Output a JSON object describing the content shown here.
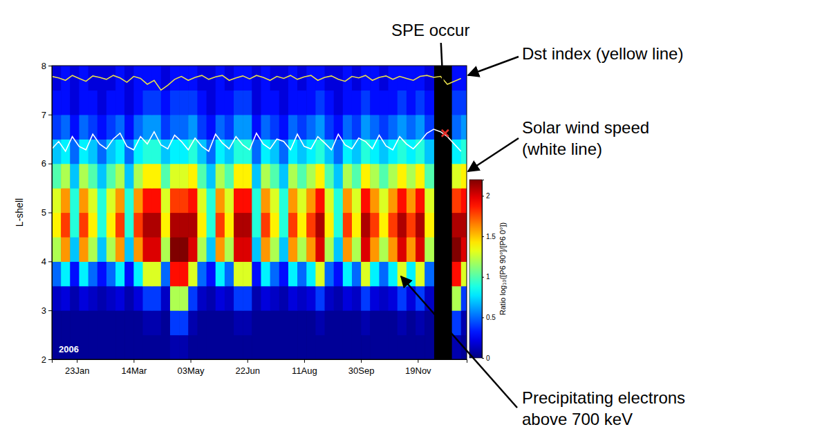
{
  "chart_data": {
    "type": "heatmap",
    "y_label": "L-shell",
    "xlim": [
      1,
      366
    ],
    "xticks": [
      {
        "value": 23,
        "label": "23Jan"
      },
      {
        "value": 73,
        "label": "14Mar"
      },
      {
        "value": 123,
        "label": "03May"
      },
      {
        "value": 173,
        "label": "22Jun"
      },
      {
        "value": 223,
        "label": "11Aug"
      },
      {
        "value": 273,
        "label": "30Sep"
      },
      {
        "value": 323,
        "label": "19Nov"
      }
    ],
    "ylim": [
      2,
      8
    ],
    "yticks": [
      2,
      3,
      4,
      5,
      6,
      7,
      8
    ],
    "heatmap": {
      "x_edges": [
        1,
        9,
        17,
        25,
        33,
        41,
        49,
        57,
        65,
        73,
        81,
        89,
        97,
        105,
        113,
        121,
        129,
        137,
        145,
        153,
        161,
        169,
        177,
        185,
        193,
        201,
        209,
        217,
        225,
        233,
        241,
        249,
        257,
        265,
        273,
        281,
        289,
        297,
        305,
        313,
        321,
        329,
        337,
        345,
        353,
        361,
        369
      ],
      "y_edges": [
        2,
        2.5,
        3,
        3.5,
        4,
        4.5,
        5,
        5.5,
        6,
        6.5,
        7,
        7.5,
        8
      ],
      "cells": [
        [
          0.05,
          0.05,
          0.05,
          0.05,
          0.05,
          0.05,
          0.05,
          0.05,
          0.05,
          0.05,
          0.05,
          0.05,
          0.05,
          0.1,
          0.1,
          0.05,
          0.05,
          0.05,
          0.05,
          0.05,
          0.05,
          0.05,
          0.05,
          0.05,
          0.05,
          0.05,
          0.05,
          0.05,
          0.05,
          0.05,
          0.05,
          0.05,
          0.05,
          0.05,
          0.05,
          0.05,
          0.05,
          0.05,
          0.05,
          0.05,
          0.05,
          0.05,
          null,
          null,
          0.1,
          0.05
        ],
        [
          0.05,
          0.05,
          0.05,
          0.05,
          0.05,
          0.05,
          0.05,
          0.05,
          0.05,
          0.05,
          0.1,
          0.1,
          0.05,
          0.4,
          0.4,
          0.1,
          0.05,
          0.05,
          0.05,
          0.05,
          0.1,
          0.1,
          0.05,
          0.05,
          0.05,
          0.05,
          0.05,
          0.05,
          0.05,
          0.1,
          0.05,
          0.05,
          0.05,
          0.05,
          0.1,
          0.05,
          0.05,
          0.05,
          0.1,
          0.05,
          0.1,
          0.05,
          null,
          null,
          0.4,
          0.1
        ],
        [
          0.15,
          0.2,
          0.1,
          0.2,
          0.15,
          0.1,
          0.15,
          0.2,
          0.1,
          0.2,
          0.4,
          0.4,
          0.15,
          1.2,
          1.2,
          0.4,
          0.15,
          0.1,
          0.2,
          0.15,
          0.4,
          0.4,
          0.1,
          0.2,
          0.15,
          0.1,
          0.2,
          0.15,
          0.2,
          0.4,
          0.15,
          0.1,
          0.2,
          0.15,
          0.4,
          0.2,
          0.15,
          0.2,
          0.4,
          0.2,
          0.4,
          0.15,
          null,
          null,
          1.2,
          0.4
        ],
        [
          0.5,
          0.8,
          0.3,
          0.8,
          0.5,
          0.3,
          0.5,
          0.8,
          0.3,
          0.8,
          1.3,
          1.3,
          0.5,
          1.9,
          1.9,
          1.3,
          0.5,
          0.3,
          0.8,
          0.5,
          1.3,
          1.3,
          0.3,
          0.8,
          0.5,
          0.3,
          0.8,
          0.5,
          0.8,
          1.3,
          0.5,
          0.3,
          0.8,
          0.5,
          1.3,
          0.8,
          0.5,
          0.8,
          1.3,
          0.8,
          1.3,
          0.5,
          null,
          null,
          1.9,
          1.3
        ],
        [
          1.2,
          1.6,
          0.7,
          1.6,
          1.2,
          0.7,
          1.2,
          1.6,
          0.7,
          1.6,
          2,
          2,
          1.2,
          2.2,
          2.2,
          2,
          1.2,
          0.7,
          1.6,
          1.2,
          2,
          2,
          0.7,
          1.6,
          1.2,
          0.7,
          1.6,
          1.2,
          1.6,
          2,
          1.2,
          0.7,
          1.6,
          1.2,
          2,
          1.6,
          1.2,
          1.6,
          2,
          1.6,
          2,
          1.2,
          null,
          null,
          2.2,
          2
        ],
        [
          1.4,
          1.8,
          0.9,
          1.8,
          1.4,
          0.9,
          1.4,
          1.8,
          0.9,
          1.8,
          2.1,
          2.1,
          1.4,
          2.1,
          2.1,
          2.1,
          1.4,
          0.9,
          1.8,
          1.4,
          2.1,
          2.1,
          0.9,
          1.8,
          1.4,
          0.9,
          1.8,
          1.4,
          1.8,
          2.1,
          1.4,
          0.9,
          1.8,
          1.4,
          2.1,
          1.8,
          1.4,
          1.8,
          2.1,
          1.8,
          2.1,
          1.4,
          null,
          null,
          2.1,
          2.1
        ],
        [
          1.3,
          1.6,
          0.9,
          1.6,
          1.3,
          0.9,
          1.3,
          1.6,
          0.9,
          1.6,
          1.9,
          1.9,
          1.3,
          1.8,
          1.8,
          1.9,
          1.3,
          0.9,
          1.6,
          1.3,
          1.9,
          1.9,
          0.9,
          1.6,
          1.3,
          0.9,
          1.6,
          1.3,
          1.6,
          1.9,
          1.3,
          0.9,
          1.6,
          1.3,
          1.9,
          1.6,
          1.3,
          1.6,
          1.9,
          1.6,
          1.9,
          1.3,
          null,
          null,
          1.8,
          1.9
        ],
        [
          1,
          1.2,
          0.7,
          1.2,
          1,
          0.7,
          1,
          1.2,
          0.7,
          1.2,
          1.4,
          1.4,
          1,
          1.3,
          1.3,
          1.4,
          1,
          0.7,
          1.2,
          1,
          1.4,
          1.4,
          0.7,
          1.2,
          1,
          0.7,
          1.2,
          1,
          1.2,
          1.4,
          1,
          0.7,
          1.2,
          1,
          1.4,
          1.2,
          1,
          1.2,
          1.4,
          1.2,
          1.4,
          1,
          null,
          null,
          1.3,
          1.4
        ],
        [
          0.7,
          0.8,
          0.5,
          0.8,
          0.7,
          0.5,
          0.7,
          0.8,
          0.5,
          0.8,
          0.9,
          0.9,
          0.7,
          0.8,
          0.8,
          0.9,
          0.7,
          0.5,
          0.8,
          0.7,
          0.9,
          0.9,
          0.5,
          0.8,
          0.7,
          0.5,
          0.8,
          0.7,
          0.8,
          0.9,
          0.7,
          0.5,
          0.8,
          0.7,
          0.9,
          0.8,
          0.7,
          0.8,
          0.9,
          0.8,
          0.9,
          0.7,
          null,
          null,
          0.8,
          0.9
        ],
        [
          0.4,
          0.5,
          0.3,
          0.5,
          0.4,
          0.3,
          0.4,
          0.5,
          0.3,
          0.5,
          0.6,
          0.6,
          0.4,
          0.5,
          0.5,
          0.6,
          0.4,
          0.3,
          0.5,
          0.4,
          0.6,
          0.6,
          0.3,
          0.5,
          0.4,
          0.3,
          0.5,
          0.4,
          0.5,
          0.6,
          0.4,
          0.3,
          0.5,
          0.4,
          0.6,
          0.5,
          0.4,
          0.5,
          0.6,
          0.5,
          0.6,
          0.4,
          null,
          null,
          0.5,
          0.6
        ],
        [
          0.3,
          0.3,
          0.2,
          0.3,
          0.3,
          0.2,
          0.3,
          0.3,
          0.2,
          0.3,
          0.4,
          0.4,
          0.3,
          0.4,
          0.4,
          0.4,
          0.3,
          0.2,
          0.3,
          0.3,
          0.4,
          0.4,
          0.2,
          0.3,
          0.3,
          0.2,
          0.3,
          0.3,
          0.3,
          0.4,
          0.3,
          0.2,
          0.3,
          0.3,
          0.4,
          0.3,
          0.3,
          0.3,
          0.4,
          0.3,
          0.4,
          0.3,
          null,
          null,
          0.4,
          0.4
        ],
        [
          0.2,
          0.3,
          0.2,
          0.3,
          0.2,
          0.2,
          0.2,
          0.3,
          0.2,
          0.3,
          0.3,
          0.3,
          0.2,
          0.3,
          0.3,
          0.3,
          0.2,
          0.2,
          0.3,
          0.2,
          0.3,
          0.3,
          0.2,
          0.3,
          0.2,
          0.2,
          0.3,
          0.2,
          0.3,
          0.3,
          0.2,
          0.2,
          0.3,
          0.2,
          0.3,
          0.3,
          0.2,
          0.3,
          0.3,
          0.3,
          0.3,
          0.2,
          null,
          null,
          0.3,
          0.3
        ]
      ]
    },
    "colorbar": {
      "label": "Ratio log₁₀([P6 90°]/[P6 0°])",
      "lim": [
        0,
        2.2
      ],
      "ticks": [
        0,
        0.5,
        1,
        1.5,
        2
      ]
    },
    "x": [
      1,
      7,
      13,
      19,
      25,
      31,
      37,
      43,
      49,
      55,
      61,
      67,
      73,
      79,
      85,
      91,
      97,
      103,
      109,
      115,
      121,
      127,
      133,
      139,
      145,
      151,
      157,
      163,
      169,
      175,
      181,
      187,
      193,
      199,
      205,
      211,
      217,
      223,
      229,
      235,
      241,
      247,
      253,
      259,
      265,
      271,
      277,
      283,
      289,
      295,
      301,
      307,
      313,
      319,
      325,
      331,
      337,
      343,
      349,
      355,
      361
    ],
    "series": [
      {
        "type": "line",
        "color": "#e8df4c",
        "values": [
          7.78,
          7.75,
          7.7,
          7.8,
          7.74,
          7.68,
          7.79,
          7.76,
          7.72,
          7.8,
          7.75,
          7.66,
          7.78,
          7.74,
          7.62,
          7.7,
          7.5,
          7.6,
          7.72,
          7.78,
          7.7,
          7.76,
          7.8,
          7.72,
          7.77,
          7.8,
          7.7,
          7.75,
          7.79,
          7.73,
          7.8,
          7.76,
          7.7,
          7.78,
          7.74,
          7.8,
          7.72,
          7.77,
          7.8,
          7.7,
          7.76,
          7.79,
          7.72,
          7.68,
          7.78,
          7.75,
          7.8,
          7.7,
          7.76,
          7.79,
          7.72,
          7.78,
          7.74,
          7.7,
          7.78,
          7.8,
          7.76,
          7.78,
          7.62,
          7.68,
          7.74
        ]
      },
      {
        "type": "line",
        "color": "#ffffff",
        "values": [
          6.3,
          6.45,
          6.25,
          6.55,
          6.35,
          6.28,
          6.6,
          6.4,
          6.3,
          6.5,
          6.62,
          6.35,
          6.28,
          6.55,
          6.4,
          6.65,
          6.38,
          6.3,
          6.58,
          6.45,
          6.28,
          6.52,
          6.35,
          6.25,
          6.6,
          6.42,
          6.3,
          6.55,
          6.38,
          6.28,
          6.62,
          6.4,
          6.3,
          6.5,
          6.45,
          6.28,
          6.6,
          6.35,
          6.3,
          6.55,
          6.42,
          6.28,
          6.6,
          6.38,
          6.3,
          6.52,
          6.45,
          6.3,
          6.58,
          6.36,
          6.28,
          6.55,
          6.4,
          6.3,
          6.45,
          6.62,
          6.7,
          6.65,
          6.55,
          6.4,
          6.25
        ]
      }
    ],
    "markers": [
      {
        "x": 347,
        "y": 6.62,
        "color": "#e8302a",
        "marker": "x"
      }
    ],
    "annotations": [
      {
        "text": [
          "SPE  occur"
        ]
      },
      {
        "text": [
          "Dst index (yellow line)"
        ]
      },
      {
        "text": [
          "Solar wind speed",
          "(white line)"
        ]
      },
      {
        "text": [
          "Precipitating electrons",
          "above 700 keV"
        ]
      }
    ],
    "year_label": "2006"
  }
}
